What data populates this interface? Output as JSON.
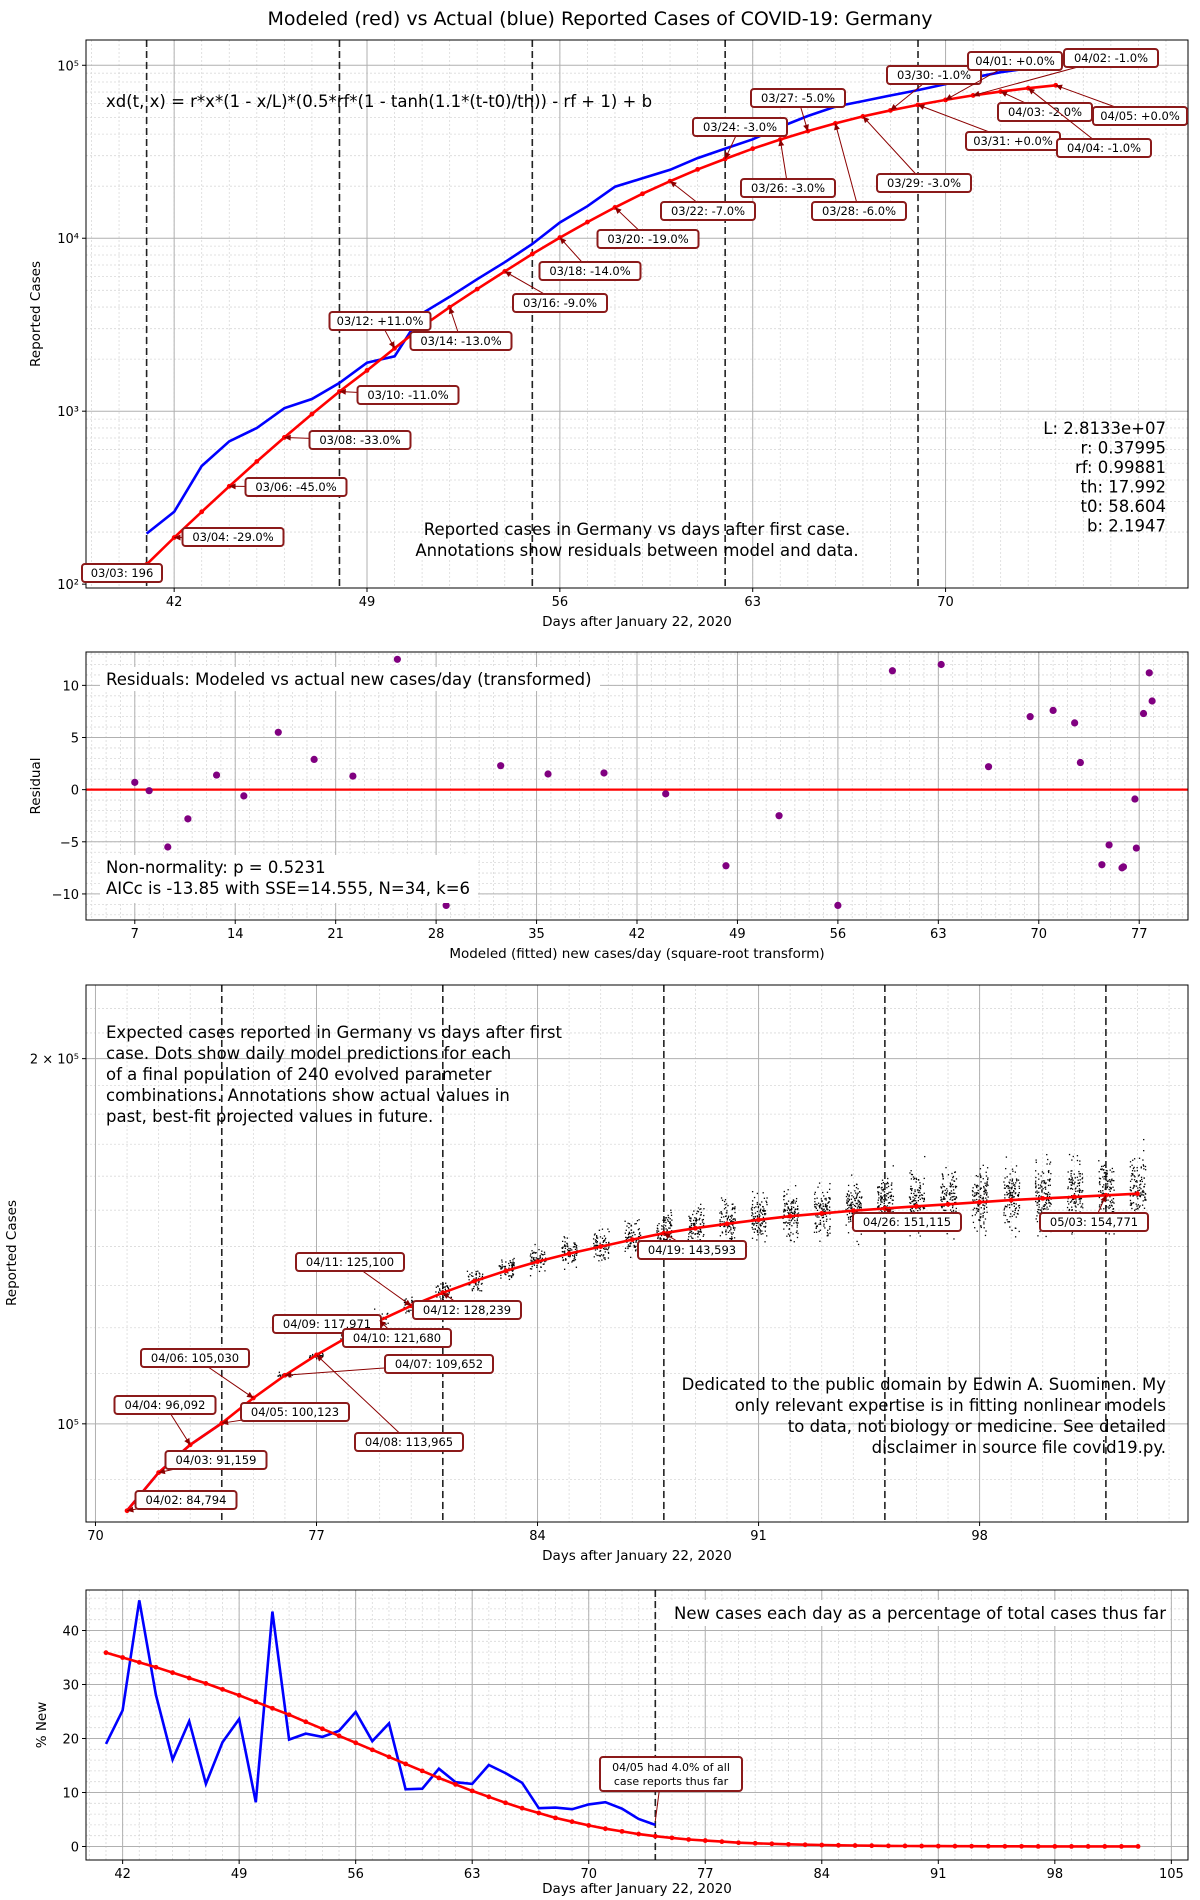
{
  "suptitle": "Modeled (red) vs Actual (blue) Reported Cases of COVID-19: Germany",
  "colors": {
    "model": "#ff0000",
    "actual": "#0000ff",
    "residual": "#800080",
    "annotation_border": "#8b1a1a",
    "annotation_arrow": "#8b0000"
  },
  "chart_data": [
    {
      "type": "line",
      "scale": "log",
      "xlabel": "Days after January 22, 2020",
      "ylabel": "Reported Cases",
      "xlim": [
        38.8,
        78.8
      ],
      "ylim": [
        95,
        140000
      ],
      "xticks": [
        "42",
        "49",
        "56",
        "63",
        "70"
      ],
      "ytick_labels": [
        "10²",
        "10³",
        "10⁴",
        "10⁵"
      ],
      "vlines": [
        41,
        48,
        55,
        62,
        69
      ],
      "formula": "xd(t, x) = r*x*(1 - x/L)*(0.5*rf*(1 - tanh(1.1*(t-t0)/th)) - rf + 1) + b",
      "params": [
        "L: 2.8133e+07",
        "r: 0.37995",
        "rf: 0.99881",
        "th: 17.992",
        "t0: 58.604",
        "b: 2.1947"
      ],
      "caption": [
        "Reported cases in Germany vs days after first case.",
        "Annotations show residuals between model and data."
      ],
      "actual_x": [
        41,
        42,
        43,
        44,
        45,
        46,
        47,
        48,
        49,
        50,
        51,
        52,
        53,
        54,
        55,
        56,
        57,
        58,
        59,
        60,
        61,
        62,
        63,
        64,
        65,
        66,
        67,
        68,
        69,
        70,
        71,
        72,
        73,
        74
      ],
      "actual_y": [
        196,
        262,
        482,
        670,
        799,
        1040,
        1176,
        1457,
        1908,
        2078,
        3675,
        4585,
        5795,
        7272,
        9257,
        12327,
        15320,
        19848,
        22213,
        24873,
        29056,
        32986,
        37323,
        43938,
        50871,
        57695,
        62095,
        66885,
        71808,
        77872,
        84794,
        91159,
        96092,
        100123
      ],
      "series": [
        {
          "name": "Modeled",
          "x": [
            41,
            42,
            43,
            44,
            45,
            46,
            47,
            48,
            49,
            50,
            51,
            52,
            53,
            54,
            55,
            56,
            57,
            58,
            59,
            60,
            61,
            62,
            63,
            64,
            65,
            66,
            67,
            68,
            69,
            70,
            71,
            72,
            73,
            74
          ],
          "y": [
            130,
            186,
            262,
            368,
            512,
            705,
            962,
            1300,
            1720,
            2310,
            3090,
            3990,
            5080,
            6430,
            8110,
            10090,
            12400,
            15070,
            18080,
            21380,
            25000,
            28750,
            32940,
            37220,
            41640,
            46100,
            50600,
            54860,
            59030,
            63080,
            66920,
            70480,
            73700,
            76580
          ]
        }
      ],
      "annotations": [
        {
          "text": "03/03: 196",
          "x": 41
        },
        {
          "text": "03/04: -29.0%",
          "x": 42
        },
        {
          "text": "03/06: -45.0%",
          "x": 44
        },
        {
          "text": "03/08: -33.0%",
          "x": 46
        },
        {
          "text": "03/10: -11.0%",
          "x": 48
        },
        {
          "text": "03/12: +11.0%",
          "x": 50
        },
        {
          "text": "03/14: -13.0%",
          "x": 52
        },
        {
          "text": "03/16: -9.0%",
          "x": 54
        },
        {
          "text": "03/18: -14.0%",
          "x": 56
        },
        {
          "text": "03/20: -19.0%",
          "x": 58
        },
        {
          "text": "03/22: -7.0%",
          "x": 60
        },
        {
          "text": "03/24: -3.0%",
          "x": 62
        },
        {
          "text": "03/26: -3.0%",
          "x": 64
        },
        {
          "text": "03/27: -5.0%",
          "x": 65
        },
        {
          "text": "03/28: -6.0%",
          "x": 66
        },
        {
          "text": "03/29: -3.0%",
          "x": 67
        },
        {
          "text": "03/30: -1.0%",
          "x": 68
        },
        {
          "text": "03/31: +0.0%",
          "x": 69
        },
        {
          "text": "04/01: +0.0%",
          "x": 70
        },
        {
          "text": "04/02: -1.0%",
          "x": 71
        },
        {
          "text": "04/03: -2.0%",
          "x": 72
        },
        {
          "text": "04/04: -1.0%",
          "x": 73
        },
        {
          "text": "04/05: +0.0%",
          "x": 74
        }
      ]
    },
    {
      "type": "scatter",
      "xlabel": "Modeled (fitted) new cases/day (square-root transform)",
      "ylabel": "Residual",
      "xlim": [
        3.6,
        80.4
      ],
      "ylim": [
        -12.5,
        13.2
      ],
      "xticks": [
        "7",
        "14",
        "21",
        "28",
        "35",
        "42",
        "49",
        "56",
        "63",
        "70",
        "77"
      ],
      "yticks": [
        "10",
        "5",
        "0",
        "−5",
        "−10"
      ],
      "title": "Residuals: Modeled vs actual new cases/day (transformed)",
      "notes": [
        "Non-normality: p = 0.5231",
        "AICc is -13.85 with SSE=14.555, N=34, k=6"
      ],
      "x": [
        7.0,
        8.0,
        9.3,
        10.7,
        12.7,
        14.6,
        17.0,
        19.5,
        22.2,
        25.3,
        28.7,
        32.5,
        35.8,
        39.7,
        44.0,
        48.2,
        51.9,
        56.0,
        59.8,
        63.2,
        66.5,
        69.4,
        71.0,
        72.5,
        72.9,
        74.4,
        74.9,
        75.8,
        75.9,
        76.7,
        76.8,
        77.3,
        77.7,
        77.9
      ],
      "y": [
        0.7,
        -0.1,
        -5.5,
        -2.8,
        1.4,
        -0.6,
        5.5,
        2.9,
        1.3,
        12.5,
        -11.1,
        2.3,
        1.5,
        1.6,
        -0.4,
        -7.3,
        -2.5,
        -11.1,
        11.4,
        12.0,
        2.2,
        7.0,
        7.6,
        6.4,
        2.6,
        -7.2,
        -5.3,
        -7.5,
        -7.4,
        -0.9,
        -5.6,
        7.3,
        11.2,
        8.5
      ],
      "fit_line_y": 0
    },
    {
      "type": "line",
      "scale": "log",
      "xlabel": "Days after January 22, 2020",
      "ylabel": "Reported Cases",
      "xlim": [
        69.7,
        104.6
      ],
      "ylim": [
        83000,
        230000
      ],
      "xticks": [
        "70",
        "77",
        "84",
        "91",
        "98"
      ],
      "ytick_labels": [
        "10⁵",
        "2 × 10⁵"
      ],
      "vlines": [
        74,
        81,
        88,
        95,
        102
      ],
      "caption": [
        "Expected cases reported in Germany vs days after first",
        "case. Dots show daily model predictions for each",
        "of a final population of 240 evolved parameter",
        "combinations. Annotations show actual values in",
        "past, best-fit projected values in future."
      ],
      "dedication": [
        "Dedicated to the public domain by Edwin A. Suominen. My",
        "only relevant expertise is in fitting nonlinear models",
        "to data, not biology or medicine. See detailed",
        "disclaimer in source file covid19.py."
      ],
      "actual_x": [
        71,
        72,
        73,
        74
      ],
      "actual_y": [
        84794,
        91159,
        96092,
        100123
      ],
      "series": [
        {
          "name": "Modeled",
          "x": [
            71,
            72,
            73,
            74,
            75,
            76,
            77,
            78,
            79,
            80,
            81,
            82,
            83,
            84,
            85,
            86,
            87,
            88,
            89,
            90,
            91,
            92,
            93,
            94,
            95,
            96,
            97,
            98,
            99,
            100,
            101,
            102,
            103
          ],
          "y": [
            84794,
            91159,
            96092,
            100123,
            105030,
            109652,
            113965,
            117971,
            121680,
            125100,
            128239,
            131100,
            133700,
            136050,
            138150,
            140000,
            141850,
            143593,
            144950,
            146180,
            147300,
            148300,
            149100,
            149850,
            150500,
            151115,
            151700,
            152300,
            152900,
            153400,
            153850,
            154300,
            154771
          ]
        }
      ],
      "annotations": [
        {
          "text": "04/02: 84,794",
          "x": 71
        },
        {
          "text": "04/03: 91,159",
          "x": 72
        },
        {
          "text": "04/04: 96,092",
          "x": 73
        },
        {
          "text": "04/05: 100,123",
          "x": 74
        },
        {
          "text": "04/06: 105,030",
          "x": 75
        },
        {
          "text": "04/07: 109,652",
          "x": 76
        },
        {
          "text": "04/08: 113,965",
          "x": 77
        },
        {
          "text": "04/09: 117,971",
          "x": 78
        },
        {
          "text": "04/10: 121,680",
          "x": 79
        },
        {
          "text": "04/11: 125,100",
          "x": 80
        },
        {
          "text": "04/12: 128,239",
          "x": 81
        },
        {
          "text": "04/19: 143,593",
          "x": 88
        },
        {
          "text": "04/26: 151,115",
          "x": 95
        },
        {
          "text": "05/03: 154,771",
          "x": 102
        }
      ]
    },
    {
      "type": "line",
      "xlabel": "Days after January 22, 2020",
      "ylabel": "% New",
      "xlim": [
        39.8,
        106.0
      ],
      "ylim": [
        -2.5,
        47.5
      ],
      "xticks": [
        "42",
        "49",
        "56",
        "63",
        "70",
        "77",
        "84",
        "91",
        "98",
        "105"
      ],
      "yticks": [
        "40",
        "30",
        "20",
        "10",
        "0"
      ],
      "vlines": [
        74
      ],
      "title": "New cases each day as a percentage of total cases thus far",
      "annotation": [
        "04/05 had 4.0% of all",
        "case reports thus far"
      ],
      "series": [
        {
          "name": "Actual",
          "x": [
            41,
            42,
            43,
            44,
            45,
            46,
            47,
            48,
            49,
            50,
            51,
            52,
            53,
            54,
            55,
            56,
            57,
            58,
            59,
            60,
            61,
            62,
            63,
            64,
            65,
            66,
            67,
            68,
            69,
            70,
            71,
            72,
            73,
            74
          ],
          "y": [
            19.0,
            25.2,
            45.6,
            28.1,
            16.1,
            23.2,
            11.6,
            19.3,
            23.6,
            8.2,
            43.5,
            19.8,
            20.9,
            20.3,
            21.4,
            24.9,
            19.5,
            22.8,
            10.6,
            10.7,
            14.4,
            11.9,
            11.6,
            15.1,
            13.6,
            11.8,
            7.1,
            7.2,
            6.9,
            7.8,
            8.2,
            7.0,
            5.1,
            4.0
          ]
        },
        {
          "name": "Modeled",
          "x": [
            41,
            42,
            43,
            44,
            45,
            46,
            47,
            48,
            49,
            50,
            51,
            52,
            53,
            54,
            55,
            56,
            57,
            58,
            59,
            60,
            61,
            62,
            63,
            64,
            65,
            66,
            67,
            68,
            69,
            70,
            71,
            72,
            73,
            74,
            75,
            76,
            77,
            78,
            79,
            80,
            81,
            82,
            83,
            84,
            85,
            86,
            87,
            88,
            89,
            90,
            91,
            92,
            93,
            94,
            95,
            96,
            97,
            98,
            99,
            100,
            101,
            102,
            103
          ],
          "y": [
            35.9,
            35.0,
            34.1,
            33.2,
            32.2,
            31.2,
            30.2,
            29.1,
            28.0,
            26.8,
            25.6,
            24.4,
            23.1,
            21.8,
            20.5,
            19.2,
            17.9,
            16.6,
            15.3,
            14.0,
            12.7,
            11.5,
            10.3,
            9.2,
            8.1,
            7.1,
            6.2,
            5.3,
            4.6,
            3.9,
            3.3,
            2.8,
            2.3,
            1.9,
            1.6,
            1.3,
            1.1,
            0.9,
            0.7,
            0.6,
            0.5,
            0.4,
            0.33,
            0.27,
            0.22,
            0.18,
            0.15,
            0.12,
            0.1,
            0.08,
            0.07,
            0.06,
            0.05,
            0.04,
            0.03,
            0.03,
            0.02,
            0.02,
            0.02,
            0.01,
            0.01,
            0.01,
            0.01
          ]
        }
      ]
    }
  ]
}
